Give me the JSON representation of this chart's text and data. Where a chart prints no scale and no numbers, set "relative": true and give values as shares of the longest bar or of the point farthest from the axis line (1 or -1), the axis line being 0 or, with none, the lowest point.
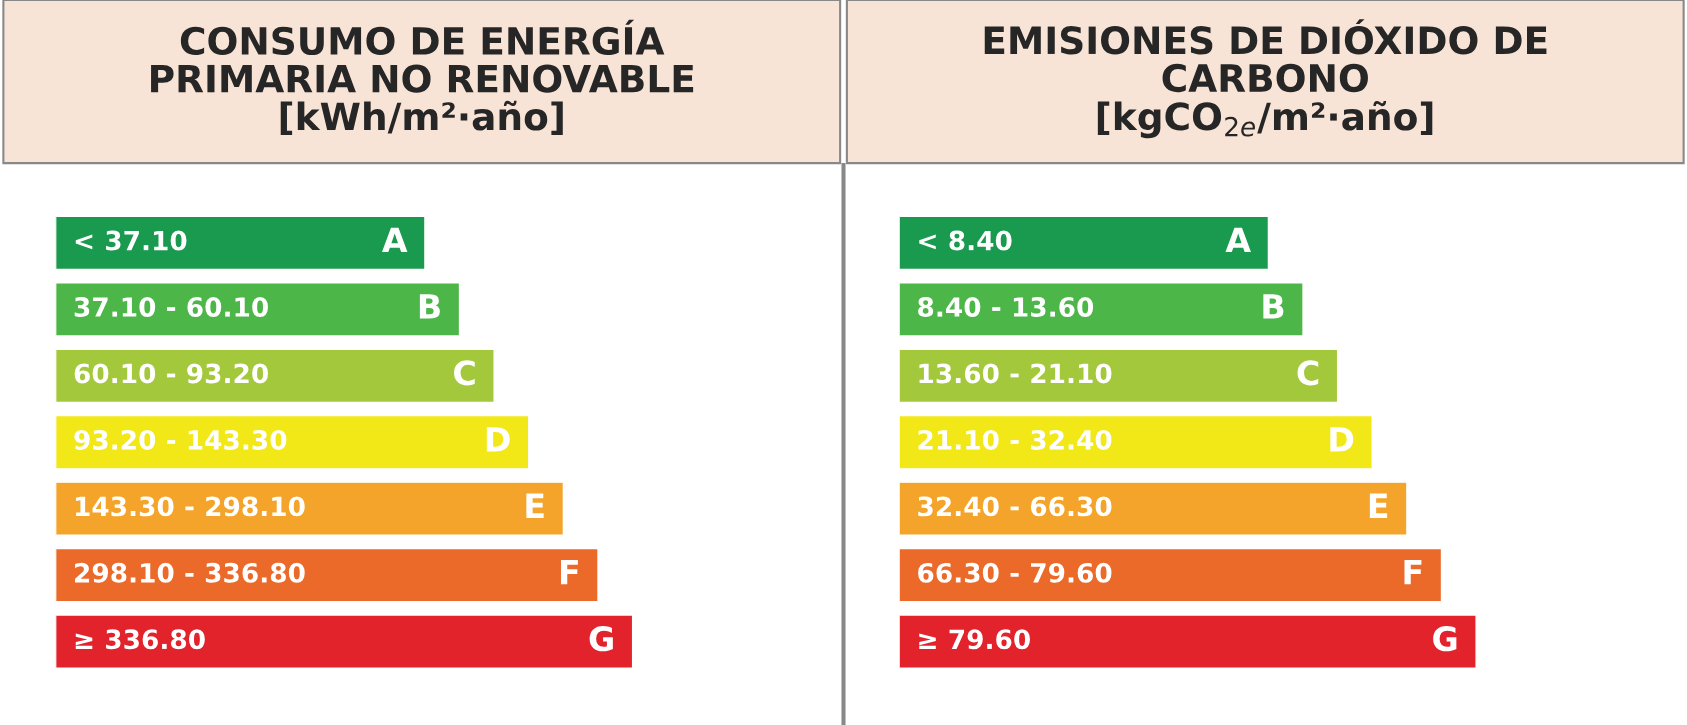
{
  "chart_data": [
    {
      "type": "bar",
      "orientation": "horizontal",
      "relative": true,
      "title": "CONSUMO DE ENERGÍA\nPRIMARIA NO RENOVABLE\n[kWh/m²·año]",
      "categories": [
        "< 37.10",
        "37.10 - 60.10",
        "60.10 - 93.20",
        "93.20 - 143.30",
        "143.30 - 298.10",
        "298.10 - 336.80",
        "≥ 336.80"
      ],
      "values": [
        0.64,
        0.7,
        0.76,
        0.82,
        0.88,
        0.94,
        1
      ],
      "colors": [
        "#1a9a4f",
        "#4cb748",
        "#a4c83c",
        "#f3e817",
        "#f4a42a",
        "#eb6a2a",
        "#e2232c"
      ],
      "annotations": [
        {
          "text": "A",
          "x": 0.64,
          "y": "< 37.10"
        },
        {
          "text": "B",
          "x": 0.7,
          "y": "37.10 - 60.10"
        },
        {
          "text": "C",
          "x": 0.76,
          "y": "60.10 - 93.20"
        },
        {
          "text": "D",
          "x": 0.82,
          "y": "93.20 - 143.30"
        },
        {
          "text": "E",
          "x": 0.88,
          "y": "143.30 - 298.10"
        },
        {
          "text": "F",
          "x": 0.94,
          "y": "298.10 - 336.80"
        },
        {
          "text": "G",
          "x": 1,
          "y": "≥ 336.80"
        }
      ]
    },
    {
      "type": "bar",
      "orientation": "horizontal",
      "relative": true,
      "title": "EMISIONES DE DIÓXIDO DE\nCARBONO\n[kgCO$_{2e}$/m²·año]",
      "categories": [
        "< 8.40",
        "8.40 - 13.60",
        "13.60 - 21.10",
        "21.10 - 32.40",
        "32.40 - 66.30",
        "66.30 - 79.60",
        "≥ 79.60"
      ],
      "values": [
        0.64,
        0.7,
        0.76,
        0.82,
        0.88,
        0.94,
        1
      ],
      "colors": [
        "#1a9a4f",
        "#4cb748",
        "#a4c83c",
        "#f3e817",
        "#f4a42a",
        "#eb6a2a",
        "#e2232c"
      ],
      "annotations": [
        {
          "text": "A",
          "x": 0.64,
          "y": "< 8.40"
        },
        {
          "text": "B",
          "x": 0.7,
          "y": "8.40 - 13.60"
        },
        {
          "text": "C",
          "x": 0.76,
          "y": "13.60 - 21.10"
        },
        {
          "text": "D",
          "x": 0.82,
          "y": "21.10 - 32.40"
        },
        {
          "text": "E",
          "x": 0.88,
          "y": "32.40 - 66.30"
        },
        {
          "text": "F",
          "x": 0.94,
          "y": "66.30 - 79.60"
        },
        {
          "text": "G",
          "x": 1,
          "y": "≥ 79.60"
        }
      ]
    }
  ]
}
